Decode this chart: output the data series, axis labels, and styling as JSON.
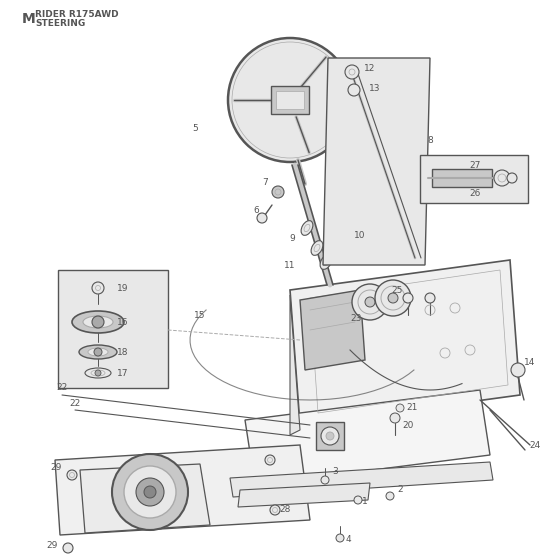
{
  "title_letter": "M",
  "title_line1": "RIDER R175AWD",
  "title_line2": "STEERING",
  "bg_color": "#ffffff",
  "line_color": "#555555",
  "light_gray": "#c8c8c8",
  "mid_gray": "#aaaaaa",
  "dark_gray": "#888888",
  "very_light": "#e8e8e8",
  "figsize": [
    5.6,
    5.6
  ],
  "dpi": 100
}
